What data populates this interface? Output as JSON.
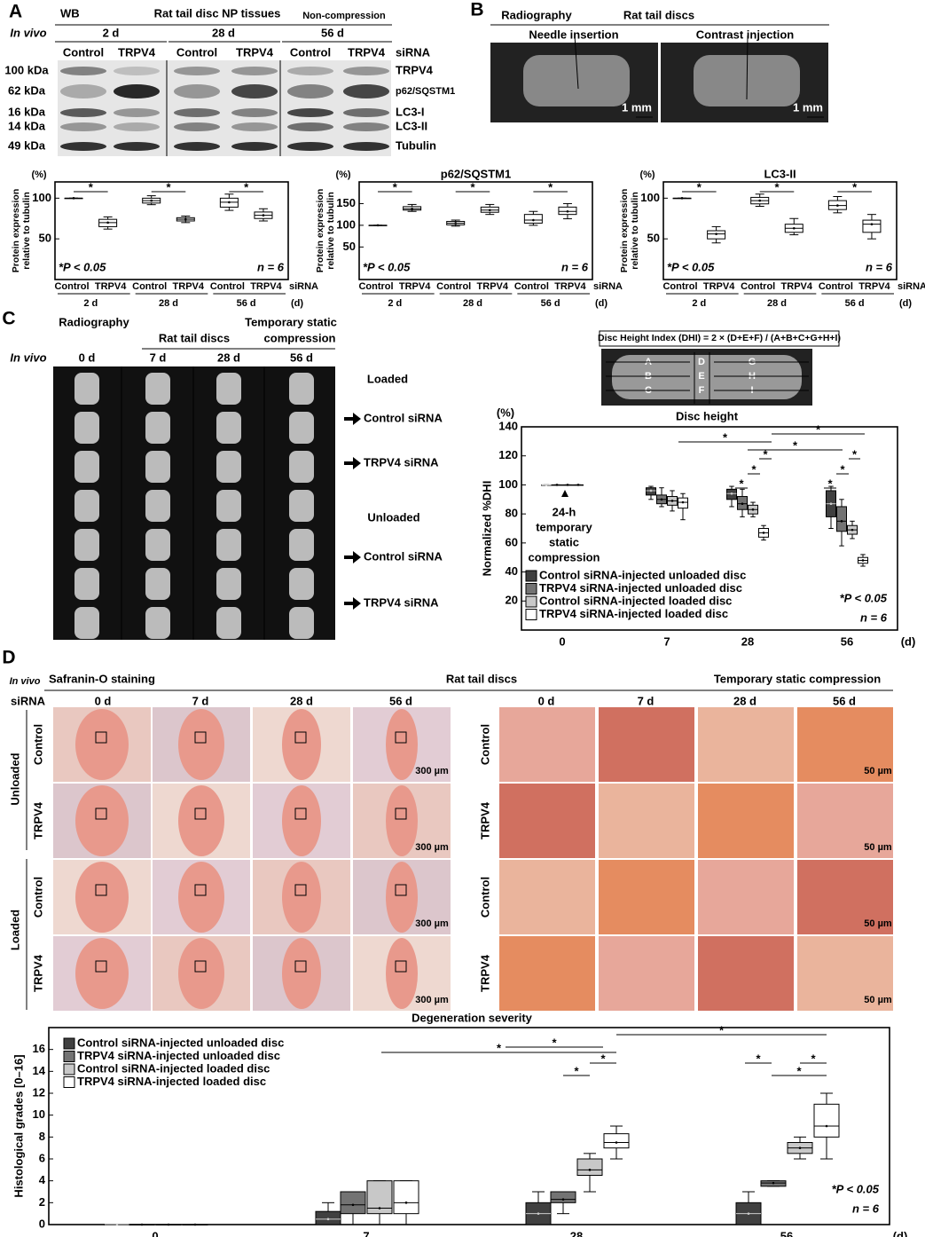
{
  "panel_a": {
    "letter": "A",
    "wb": "WB",
    "tissue": "Rat tail disc NP tissues",
    "noncomp": "Non-compression",
    "invivo": "In vivo",
    "times": [
      "2 d",
      "28 d",
      "56 d"
    ],
    "lanes": [
      "Control",
      "TRPV4",
      "Control",
      "TRPV4",
      "Control",
      "TRPV4"
    ],
    "sirna": "siRNA",
    "kda": [
      "100 kDa",
      "62 kDa",
      "16 kDa",
      "14 kDa",
      "49 kDa"
    ],
    "proteins": [
      "TRPV4",
      "p62/SQSTM1",
      "LC3-I",
      "LC3-II",
      "Tubulin"
    ]
  },
  "panel_b": {
    "letter": "B",
    "method": "Radiography",
    "subject": "Rat tail discs",
    "images": [
      "Needle insertion",
      "Contrast injection"
    ],
    "scale": "1 mm"
  },
  "panel_c": {
    "letter": "C",
    "method": "Radiography",
    "subject": "Rat tail discs",
    "compression": [
      "Temporary static",
      "compression"
    ],
    "invivo": "In vivo",
    "times": [
      "0 d",
      "7 d",
      "28 d",
      "56 d"
    ],
    "rows": [
      "Loaded",
      "Control siRNA",
      "TRPV4 siRNA",
      "Unloaded",
      "Control siRNA",
      "TRPV4 siRNA"
    ],
    "formula": "Disc Height Index (DHI) = 2 × (D+E+F) / (A+B+C+G+H+I)",
    "regions": [
      "A",
      "B",
      "C",
      "D",
      "E",
      "F",
      "G",
      "H",
      "I"
    ]
  },
  "panel_d": {
    "letter": "D",
    "invivo": "In vivo",
    "stain": "Safranin-O staining",
    "subject": "Rat tail discs",
    "compression": "Temporary static compression",
    "sirna": "siRNA",
    "times": [
      "0 d",
      "7 d",
      "28 d",
      "56 d"
    ],
    "groups": [
      "Unloaded",
      "Loaded"
    ],
    "rows": [
      "Control",
      "TRPV4",
      "Control",
      "TRPV4"
    ],
    "scale_low": "300 µm",
    "scale_high": "50 µm"
  },
  "chart_data": [
    {
      "type": "box",
      "unit": "(%)",
      "ylabel": [
        "Protein expression",
        "relative to tubulin"
      ],
      "ylim": [
        0,
        120
      ],
      "yticks": [
        50,
        100
      ],
      "categories": [
        "Control",
        "TRPV4",
        "Control",
        "TRPV4",
        "Control",
        "TRPV4"
      ],
      "groups": [
        "2 d",
        "28 d",
        "56 d"
      ],
      "suffix": "siRNA",
      "xunit": "(d)",
      "annotation": "*P < 0.05",
      "n": "n = 6",
      "sig": "*",
      "values": [
        [
          100,
          100,
          100,
          100,
          100
        ],
        [
          62,
          65,
          70,
          74,
          77
        ],
        [
          92,
          94,
          97,
          100,
          103
        ],
        [
          70,
          72,
          74,
          76,
          78
        ],
        [
          85,
          89,
          95,
          100,
          105
        ],
        [
          72,
          75,
          79,
          83,
          87
        ]
      ]
    },
    {
      "type": "box",
      "title": "p62/SQSTM1",
      "unit": "(%)",
      "ylabel": [
        "Protein expression",
        "relative to tubulin"
      ],
      "ylim": [
        -25,
        200
      ],
      "yticks": [
        50,
        100,
        150
      ],
      "categories": [
        "Control",
        "TRPV4",
        "Control",
        "TRPV4",
        "Control",
        "TRPV4"
      ],
      "groups": [
        "2 d",
        "28 d",
        "56 d"
      ],
      "suffix": "siRNA",
      "xunit": "(d)",
      "annotation": "*P < 0.05",
      "n": "n = 6",
      "sig": "*",
      "values": [
        [
          100,
          100,
          100,
          100,
          100
        ],
        [
          132,
          135,
          138,
          143,
          148
        ],
        [
          98,
          101,
          105,
          109,
          112
        ],
        [
          125,
          130,
          135,
          142,
          148
        ],
        [
          100,
          105,
          112,
          125,
          132
        ],
        [
          115,
          125,
          132,
          142,
          150
        ]
      ]
    },
    {
      "type": "box",
      "title": "LC3-II",
      "unit": "(%)",
      "ylabel": [
        "Protein expression",
        "relative to tubulin"
      ],
      "ylim": [
        0,
        120
      ],
      "yticks": [
        50,
        100
      ],
      "categories": [
        "Control",
        "TRPV4",
        "Control",
        "TRPV4",
        "Control",
        "TRPV4"
      ],
      "groups": [
        "2 d",
        "28 d",
        "56 d"
      ],
      "suffix": "siRNA",
      "xunit": "(d)",
      "annotation": "*P < 0.05",
      "n": "n = 6",
      "sig": "*",
      "values": [
        [
          100,
          100,
          100,
          100,
          100
        ],
        [
          45,
          50,
          56,
          60,
          65
        ],
        [
          90,
          93,
          97,
          101,
          105
        ],
        [
          55,
          58,
          63,
          68,
          75
        ],
        [
          82,
          86,
          91,
          97,
          102
        ],
        [
          50,
          58,
          68,
          73,
          80
        ]
      ]
    },
    {
      "type": "groupbox",
      "title": "Disc height",
      "unit": "(%)",
      "ylabel": "Normalized %DHI",
      "ylim": [
        0,
        140
      ],
      "yticks": [
        20,
        40,
        60,
        80,
        100,
        120,
        140
      ],
      "categories": [
        "0",
        "7",
        "28",
        "56"
      ],
      "xunit": "(d)",
      "annotation": "*P < 0.05",
      "n": "n = 6",
      "sig": "*",
      "note": [
        "24-h",
        "temporary",
        "static",
        "compression"
      ],
      "series": [
        {
          "name": "Control siRNA-injected unloaded disc",
          "color": "#404040",
          "values": [
            [
              100,
              100,
              100,
              100,
              100
            ],
            [
              90,
              93,
              96,
              98,
              99
            ],
            [
              85,
              90,
              94,
              97,
              99
            ],
            [
              70,
              78,
              87,
              96,
              99
            ]
          ]
        },
        {
          "name": "TRPV4 siRNA-injected unloaded disc",
          "color": "#737373",
          "values": [
            [
              100,
              100,
              100,
              100,
              100
            ],
            [
              85,
              87,
              90,
              93,
              98
            ],
            [
              78,
              83,
              87,
              92,
              97
            ],
            [
              58,
              68,
              75,
              85,
              90
            ]
          ]
        },
        {
          "name": "Control siRNA-injected loaded disc",
          "color": "#c8c8c8",
          "values": [
            [
              100,
              100,
              100,
              100,
              100
            ],
            [
              82,
              86,
              89,
              92,
              96
            ],
            [
              78,
              80,
              83,
              86,
              88
            ],
            [
              63,
              66,
              69,
              72,
              75
            ]
          ]
        },
        {
          "name": "TRPV4 siRNA-injected loaded disc",
          "color": "#ffffff",
          "values": [
            [
              100,
              100,
              100,
              100,
              100
            ],
            [
              76,
              84,
              88,
              91,
              94
            ],
            [
              62,
              64,
              67,
              70,
              72
            ],
            [
              44,
              46,
              48,
              50,
              52
            ]
          ]
        }
      ]
    },
    {
      "type": "groupbox",
      "title": "Degeneration severity",
      "ylabel": "Histological grades [0–16]",
      "ylim": [
        0,
        18
      ],
      "yticks": [
        0,
        2,
        4,
        6,
        8,
        10,
        12,
        14,
        16
      ],
      "categories": [
        "0",
        "7",
        "28",
        "56"
      ],
      "xunit": "(d)",
      "annotation": "*P < 0.05",
      "n": "n = 6",
      "sig": "*",
      "series": [
        {
          "name": "Control siRNA-injected unloaded disc",
          "color": "#404040",
          "values": [
            [
              0,
              0,
              0,
              0,
              0
            ],
            [
              0,
              0,
              0.5,
              1.2,
              2
            ],
            [
              0,
              0,
              1,
              2,
              3
            ],
            [
              0,
              0,
              1,
              2,
              3
            ]
          ]
        },
        {
          "name": "TRPV4 siRNA-injected unloaded disc",
          "color": "#737373",
          "values": [
            [
              0,
              0,
              0,
              0,
              0
            ],
            [
              0,
              1,
              1.8,
              3,
              3
            ],
            [
              1,
              2,
              2.3,
              3,
              3
            ],
            [
              3.5,
              3.5,
              3.8,
              4,
              4
            ]
          ]
        },
        {
          "name": "Control siRNA-injected loaded disc",
          "color": "#c8c8c8",
          "values": [
            [
              0,
              0,
              0,
              0,
              0
            ],
            [
              0,
              1,
              1.5,
              4,
              4
            ],
            [
              3,
              4.5,
              5,
              6,
              6.5
            ],
            [
              6,
              6.5,
              7,
              7.5,
              8
            ]
          ]
        },
        {
          "name": "TRPV4 siRNA-injected loaded disc",
          "color": "#ffffff",
          "values": [
            [
              0,
              0,
              0,
              0,
              0
            ],
            [
              0,
              1,
              2,
              4,
              4
            ],
            [
              6,
              7,
              7.5,
              8.3,
              9
            ],
            [
              6,
              8,
              9,
              11,
              12
            ]
          ]
        }
      ]
    }
  ]
}
